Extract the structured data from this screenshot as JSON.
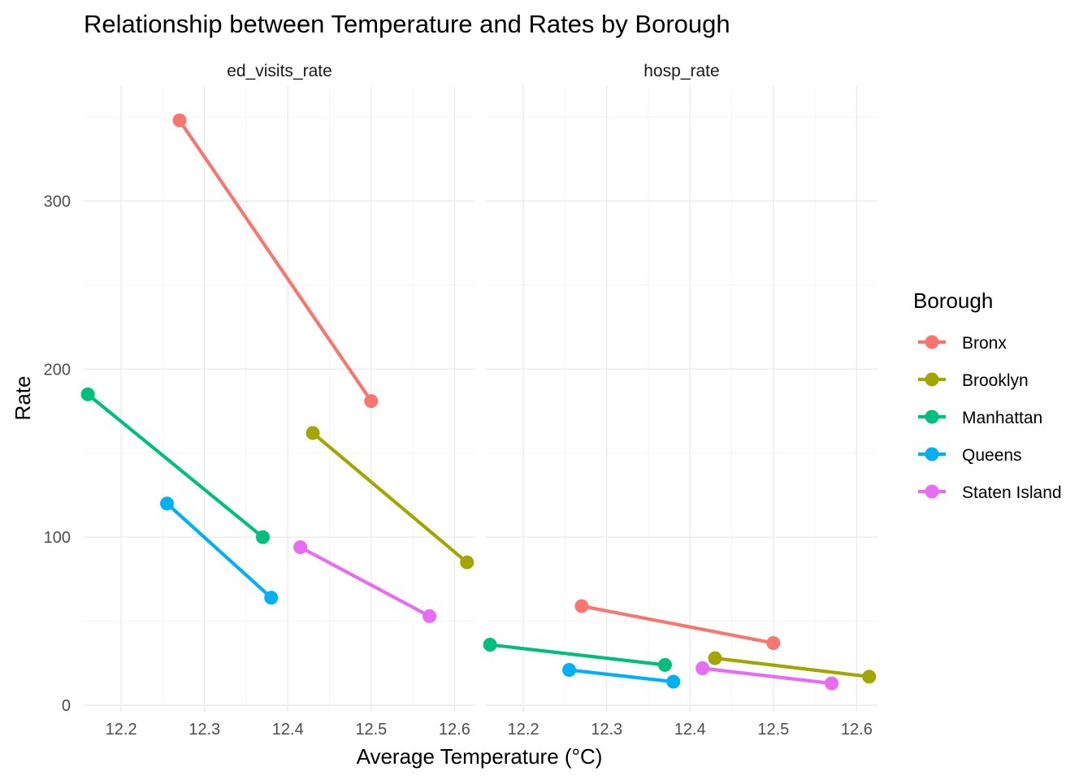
{
  "chart_data": {
    "type": "line",
    "title": "Relationship between Temperature and Rates by Borough",
    "xlabel": "Average Temperature (°C)",
    "ylabel": "Rate",
    "xlim": [
      12.155,
      12.625
    ],
    "ylim": [
      0,
      350
    ],
    "x_ticks": [
      "12.2",
      "12.3",
      "12.4",
      "12.5",
      "12.6"
    ],
    "y_ticks": [
      "0",
      "100",
      "200",
      "300"
    ],
    "grid": true,
    "legend": {
      "title": "Borough",
      "position": "right",
      "entries": [
        "Bronx",
        "Brooklyn",
        "Manhattan",
        "Queens",
        "Staten Island"
      ]
    },
    "colors": {
      "Bronx": "#F8766D",
      "Brooklyn": "#A3A500",
      "Manhattan": "#00BF7D",
      "Queens": "#00B0F6",
      "Staten Island": "#E76BF3"
    },
    "facets": [
      {
        "label": "ed_visits_rate",
        "series": [
          {
            "name": "Bronx",
            "points": [
              [
                12.27,
                348
              ],
              [
                12.5,
                181
              ]
            ]
          },
          {
            "name": "Brooklyn",
            "points": [
              [
                12.43,
                162
              ],
              [
                12.615,
                85
              ]
            ]
          },
          {
            "name": "Manhattan",
            "points": [
              [
                12.16,
                185
              ],
              [
                12.37,
                100
              ]
            ]
          },
          {
            "name": "Queens",
            "points": [
              [
                12.255,
                120
              ],
              [
                12.38,
                64
              ]
            ]
          },
          {
            "name": "Staten Island",
            "points": [
              [
                12.415,
                94
              ],
              [
                12.57,
                53
              ]
            ]
          }
        ]
      },
      {
        "label": "hosp_rate",
        "series": [
          {
            "name": "Bronx",
            "points": [
              [
                12.27,
                59
              ],
              [
                12.5,
                37
              ]
            ]
          },
          {
            "name": "Brooklyn",
            "points": [
              [
                12.43,
                28
              ],
              [
                12.615,
                17
              ]
            ]
          },
          {
            "name": "Manhattan",
            "points": [
              [
                12.16,
                36
              ],
              [
                12.37,
                24
              ]
            ]
          },
          {
            "name": "Queens",
            "points": [
              [
                12.255,
                21
              ],
              [
                12.38,
                14
              ]
            ]
          },
          {
            "name": "Staten Island",
            "points": [
              [
                12.415,
                22
              ],
              [
                12.57,
                13
              ]
            ]
          }
        ]
      }
    ]
  }
}
